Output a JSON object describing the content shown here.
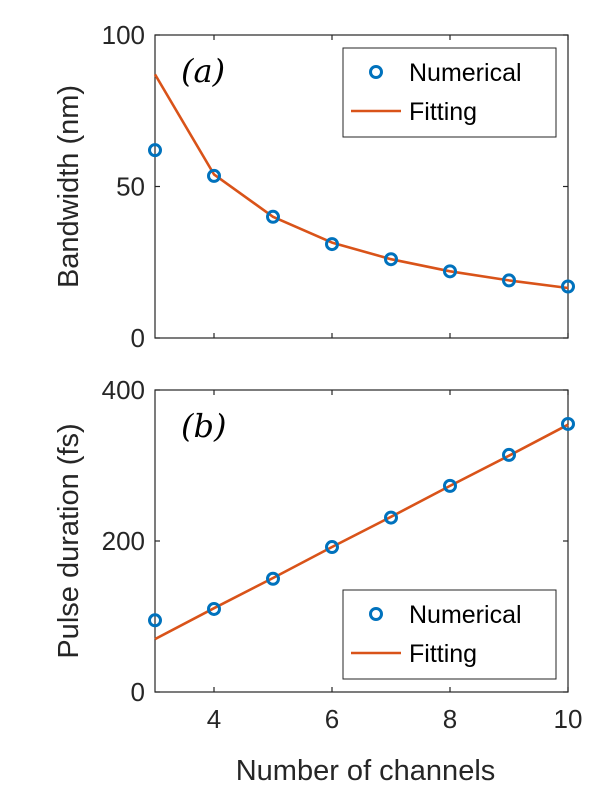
{
  "colors": {
    "numerical": "#0072BD",
    "fitting": "#D95319",
    "axis": "#262626"
  },
  "chart_data": [
    {
      "type": "line",
      "panel_label": "(a)",
      "ylabel": "Bandwidth (nm)",
      "xlabel": "",
      "xlim": [
        3,
        10
      ],
      "ylim": [
        0,
        100
      ],
      "yticks": [
        0,
        50,
        100
      ],
      "xticks": [
        4,
        6,
        8,
        10
      ],
      "show_xtick_labels": false,
      "legend_position": "top-right",
      "series": [
        {
          "name": "Numerical",
          "style": "markers",
          "x": [
            3,
            4,
            5,
            6,
            7,
            8,
            9,
            10
          ],
          "y": [
            62,
            53.5,
            40,
            31,
            26,
            22,
            19,
            17
          ]
        },
        {
          "name": "Fitting",
          "style": "line",
          "x": [
            3,
            4,
            5,
            6,
            7,
            8,
            9,
            10
          ],
          "y": [
            87,
            54,
            40,
            31.5,
            26,
            22,
            19,
            16.5
          ]
        }
      ]
    },
    {
      "type": "line",
      "panel_label": "(b)",
      "ylabel": "Pulse duration (fs)",
      "xlabel": "Number of channels",
      "xlim": [
        3,
        10
      ],
      "ylim": [
        0,
        400
      ],
      "yticks": [
        0,
        200,
        400
      ],
      "xticks": [
        4,
        6,
        8,
        10
      ],
      "show_xtick_labels": true,
      "legend_position": "bottom-right",
      "series": [
        {
          "name": "Numerical",
          "style": "markers",
          "x": [
            3,
            4,
            5,
            6,
            7,
            8,
            9,
            10
          ],
          "y": [
            95,
            110,
            150,
            192,
            231,
            273,
            314,
            355
          ]
        },
        {
          "name": "Fitting",
          "style": "line",
          "x": [
            3,
            4,
            5,
            6,
            7,
            8,
            9,
            10
          ],
          "y": [
            70,
            111,
            151,
            192,
            232,
            273,
            313,
            354
          ]
        }
      ]
    }
  ]
}
